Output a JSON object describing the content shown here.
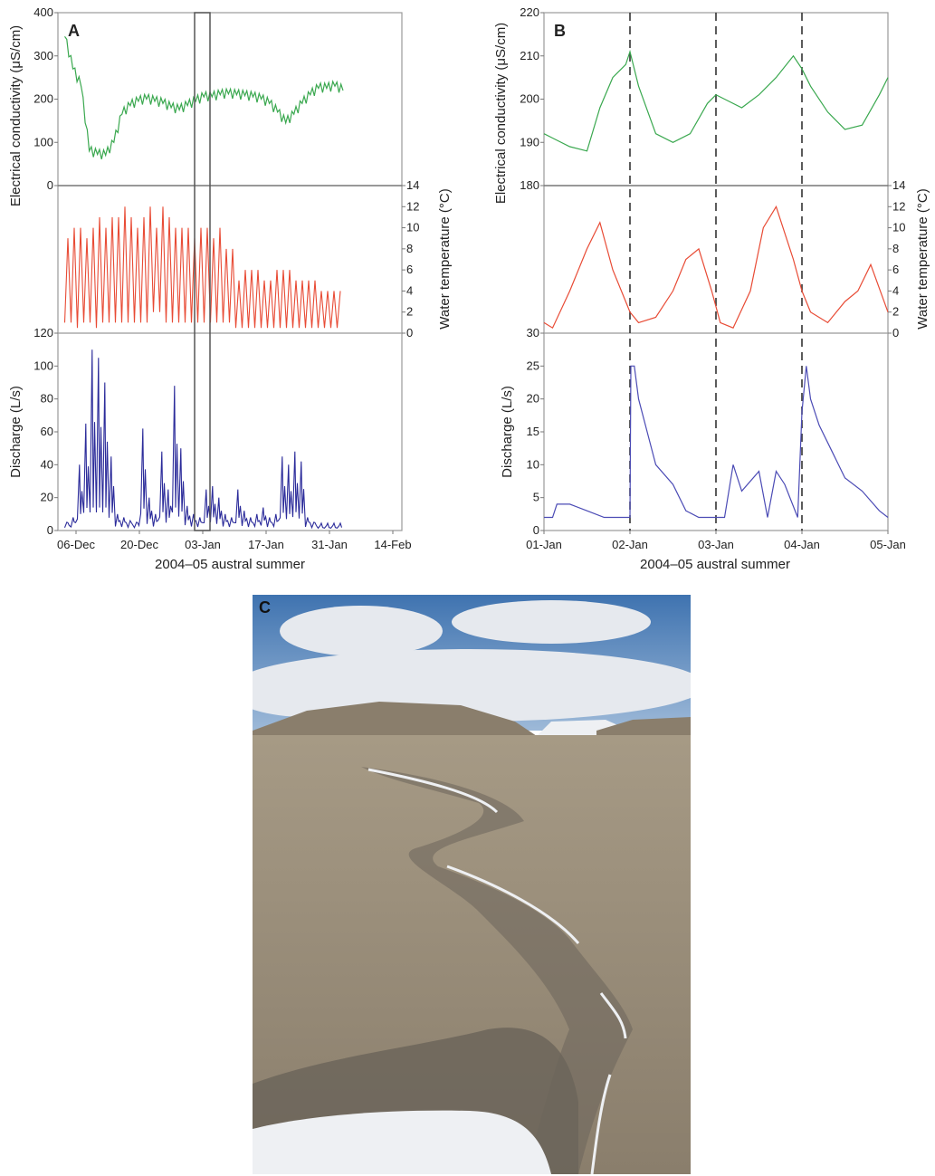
{
  "chart_data": [
    {
      "panel": "A",
      "type": "line",
      "xlabel": "2004–05 austral summer",
      "x_ticks": [
        "06-Dec",
        "20-Dec",
        "03-Jan",
        "17-Jan",
        "31-Jan",
        "14-Feb"
      ],
      "highlight_box": {
        "from": "01-Jan",
        "to": "05-Jan"
      },
      "series": [
        {
          "axis": "Electrical conductivity (μS/cm)",
          "color": "#3aa84f",
          "ylim": [
            0,
            400
          ],
          "y_ticks": [
            "400",
            "300",
            "200",
            "100",
            "0"
          ],
          "values": [
            345,
            270,
            230,
            80,
            72,
            70,
            100,
            165,
            185,
            195,
            200,
            195,
            190,
            180,
            175,
            185,
            195,
            205,
            205,
            210,
            212,
            210,
            208,
            205,
            200,
            190,
            170,
            145,
            165,
            190,
            210,
            225,
            225,
            230,
            220
          ]
        },
        {
          "axis": "Water temperature (°C)",
          "color": "#e84b35",
          "ylim": [
            0,
            14
          ],
          "y_ticks": [
            "14",
            "12",
            "10",
            "8",
            "6",
            "4",
            "2",
            "0"
          ],
          "daily_max": [
            9,
            10,
            10,
            9,
            10,
            11,
            10,
            11,
            11,
            12,
            11,
            10,
            11,
            12,
            10,
            12,
            11,
            10,
            10,
            10,
            9,
            10,
            10,
            9,
            10,
            8,
            8,
            5,
            6,
            6,
            6,
            5,
            5,
            6,
            6,
            6,
            5,
            5,
            5,
            5,
            4,
            4,
            4,
            4
          ],
          "daily_min": [
            1,
            1,
            0.5,
            1,
            1,
            0.5,
            1,
            1,
            1,
            1,
            1,
            1,
            1,
            1,
            2,
            2,
            1,
            1,
            1,
            1,
            1,
            1,
            1,
            1,
            1,
            1,
            1,
            0.5,
            0.5,
            0.5,
            0.5,
            0.5,
            0.5,
            0.5,
            0.5,
            0.5,
            0.5,
            0.5,
            0.5,
            0.5,
            0.5,
            0.5,
            0.5,
            0.5
          ]
        },
        {
          "axis": "Discharge (L/s)",
          "color": "#2b2b9a",
          "ylim": [
            0,
            120
          ],
          "y_ticks": [
            "120",
            "100",
            "80",
            "60",
            "40",
            "20",
            "0"
          ],
          "daily_peak": [
            5,
            8,
            40,
            65,
            110,
            105,
            90,
            45,
            10,
            8,
            6,
            5,
            62,
            20,
            10,
            48,
            25,
            88,
            50,
            15,
            10,
            8,
            25,
            27,
            20,
            10,
            8,
            25,
            12,
            8,
            10,
            14,
            8,
            10,
            45,
            40,
            48,
            42,
            8,
            5,
            3,
            3,
            3,
            3
          ]
        }
      ]
    },
    {
      "panel": "B",
      "type": "line",
      "xlabel": "2004–05 austral summer",
      "x_ticks": [
        "01-Jan",
        "02-Jan",
        "03-Jan",
        "04-Jan",
        "05-Jan"
      ],
      "dashed_lines": [
        "02-Jan",
        "03-Jan",
        "04-Jan"
      ],
      "series": [
        {
          "axis": "Electrical conductivity (μS/cm)",
          "color": "#3aa84f",
          "ylim": [
            180,
            220
          ],
          "y_ticks": [
            "220",
            "210",
            "200",
            "190",
            "180"
          ],
          "x": [
            0,
            0.1,
            0.3,
            0.5,
            0.65,
            0.8,
            0.95,
            1.0,
            1.1,
            1.3,
            1.5,
            1.7,
            1.9,
            2.0,
            2.1,
            2.3,
            2.5,
            2.7,
            2.9,
            3.0,
            3.1,
            3.3,
            3.5,
            3.7,
            3.9,
            4.0
          ],
          "y": [
            192,
            191,
            189,
            188,
            198,
            205,
            208,
            211,
            203,
            192,
            190,
            192,
            199,
            201,
            200,
            198,
            201,
            205,
            210,
            207,
            203,
            197,
            193,
            194,
            201,
            205
          ]
        },
        {
          "axis": "Water temperature (°C)",
          "color": "#e84b35",
          "ylim": [
            0,
            14
          ],
          "y_ticks": [
            "14",
            "12",
            "10",
            "8",
            "6",
            "4",
            "2",
            "0"
          ],
          "x": [
            0,
            0.1,
            0.3,
            0.5,
            0.65,
            0.8,
            0.95,
            1.0,
            1.1,
            1.3,
            1.5,
            1.65,
            1.8,
            1.95,
            2.05,
            2.2,
            2.4,
            2.55,
            2.7,
            2.9,
            3.0,
            3.1,
            3.3,
            3.5,
            3.65,
            3.8,
            4.0
          ],
          "y": [
            1,
            0.5,
            4,
            8,
            10.5,
            6,
            3,
            2,
            1,
            1.5,
            4,
            7,
            8,
            4,
            1,
            0.5,
            4,
            10,
            12,
            7,
            4,
            2,
            1,
            3,
            4,
            6.5,
            2
          ]
        },
        {
          "axis": "Discharge (L/s)",
          "color": "#4b4bb5",
          "ylim": [
            0,
            30
          ],
          "y_ticks": [
            "30",
            "25",
            "20",
            "15",
            "10",
            "5",
            "0"
          ],
          "x": [
            0,
            0.1,
            0.15,
            0.3,
            0.5,
            0.7,
            0.9,
            1.0,
            1.01,
            1.05,
            1.1,
            1.2,
            1.3,
            1.5,
            1.65,
            1.8,
            1.95,
            2.0,
            2.1,
            2.2,
            2.3,
            2.5,
            2.6,
            2.7,
            2.8,
            2.95,
            3.0,
            3.05,
            3.1,
            3.2,
            3.35,
            3.5,
            3.7,
            3.9,
            4.0
          ],
          "y": [
            2,
            2,
            4,
            4,
            3,
            2,
            2,
            2,
            25,
            25,
            20,
            15,
            10,
            7,
            3,
            2,
            2,
            2,
            2,
            10,
            6,
            9,
            2,
            9,
            7,
            2,
            18,
            25,
            20,
            16,
            12,
            8,
            6,
            3,
            2
          ]
        }
      ]
    }
  ],
  "photo": {
    "panel": "C",
    "colors": {
      "sky_top": "#3f73b0",
      "sky_bottom": "#9db9d8",
      "cloud": "#e6e9ee",
      "ground": "#a69a85",
      "ground_dark": "#8a7e6c",
      "ice": "#eef0f3",
      "channel": "#6c655b"
    }
  }
}
